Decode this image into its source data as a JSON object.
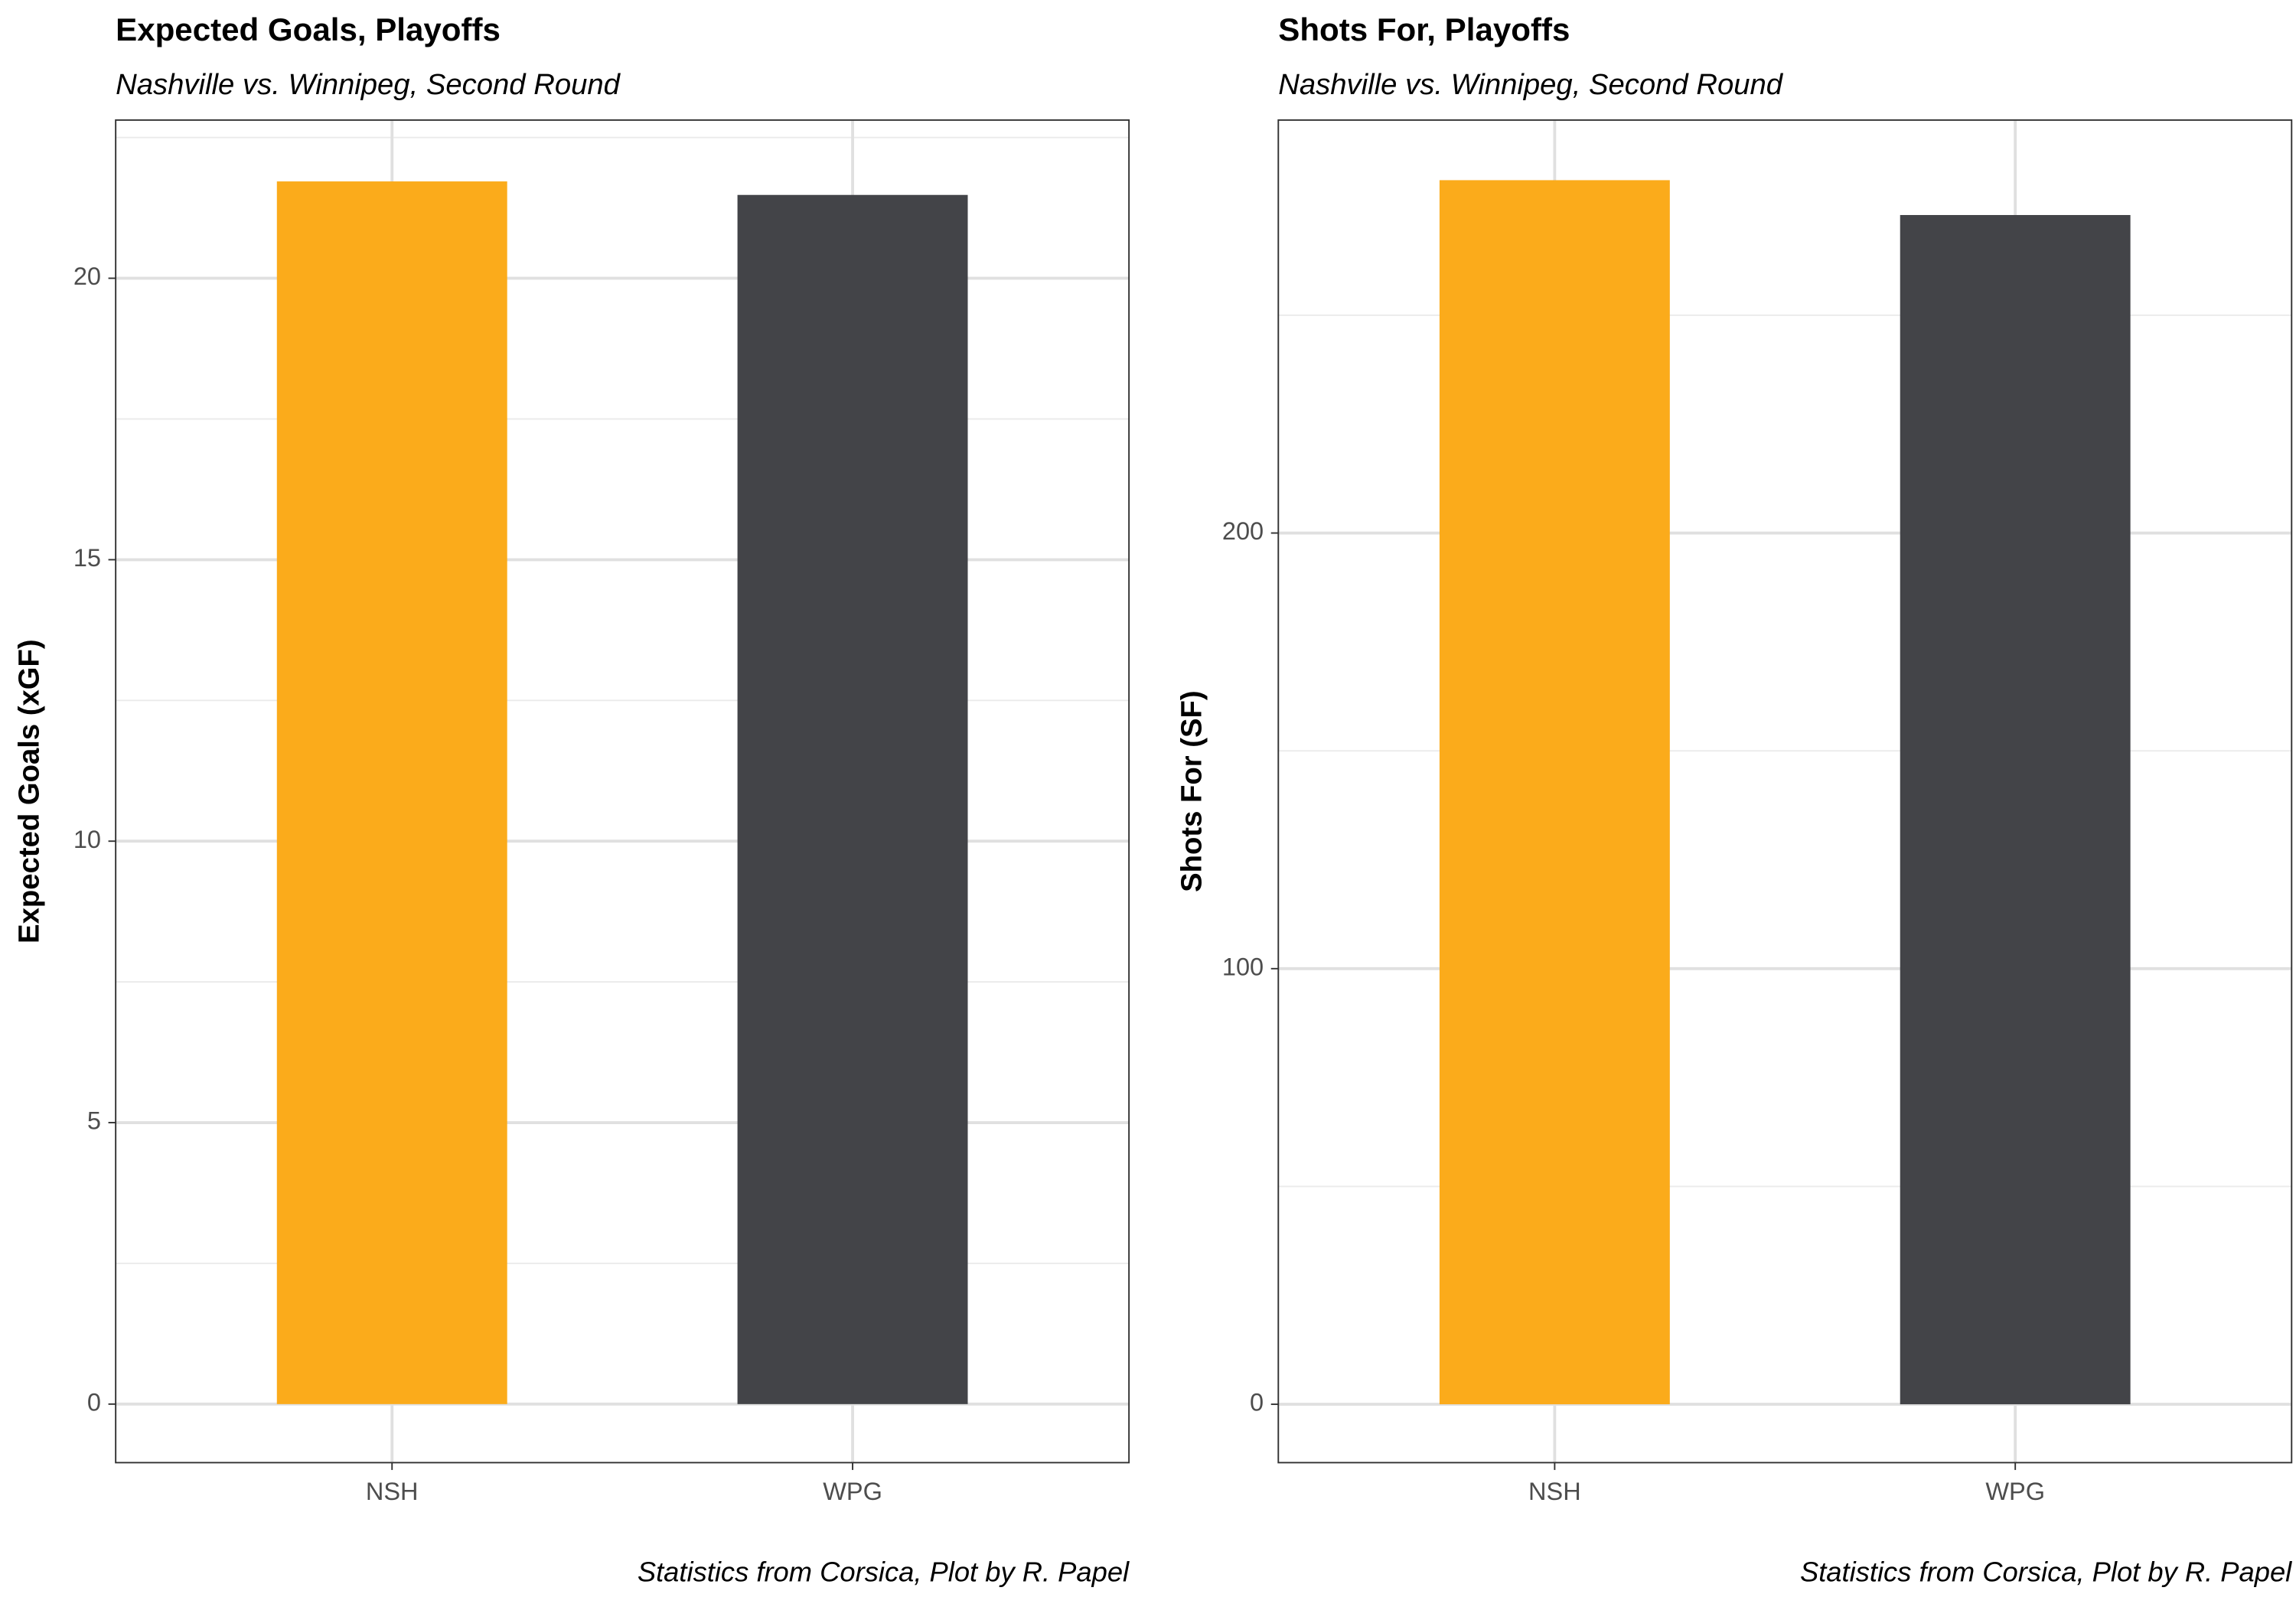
{
  "chart_data": [
    {
      "type": "bar",
      "title": "Expected Goals, Playoffs",
      "subtitle": "Nashville vs. Winnipeg, Second Round",
      "y_label": "Expected Goals (xGF)",
      "caption": "Statistics from Corsica, Plot by R. Papel",
      "categories": [
        "NSH",
        "WPG"
      ],
      "values": [
        21.72,
        21.48
      ],
      "colors": [
        "#fbab1b",
        "#434448"
      ],
      "ylim": [
        -1.04,
        22.81
      ],
      "yticks": [
        0,
        5,
        10,
        15,
        20
      ],
      "minor_yticks": [
        2.5,
        7.5,
        12.5,
        17.5,
        22.5
      ],
      "grid": true
    },
    {
      "type": "bar",
      "title": "Shots For, Playoffs",
      "subtitle": "Nashville vs. Winnipeg, Second Round",
      "y_label": "Shots For (SF)",
      "caption": "Statistics from Corsica, Plot by R. Papel",
      "categories": [
        "NSH",
        "WPG"
      ],
      "values": [
        281,
        273
      ],
      "colors": [
        "#fbab1b",
        "#434448"
      ],
      "ylim": [
        -13.4,
        294.8
      ],
      "yticks": [
        0,
        100,
        200
      ],
      "minor_yticks": [
        50,
        150,
        250
      ],
      "grid": true
    }
  ]
}
